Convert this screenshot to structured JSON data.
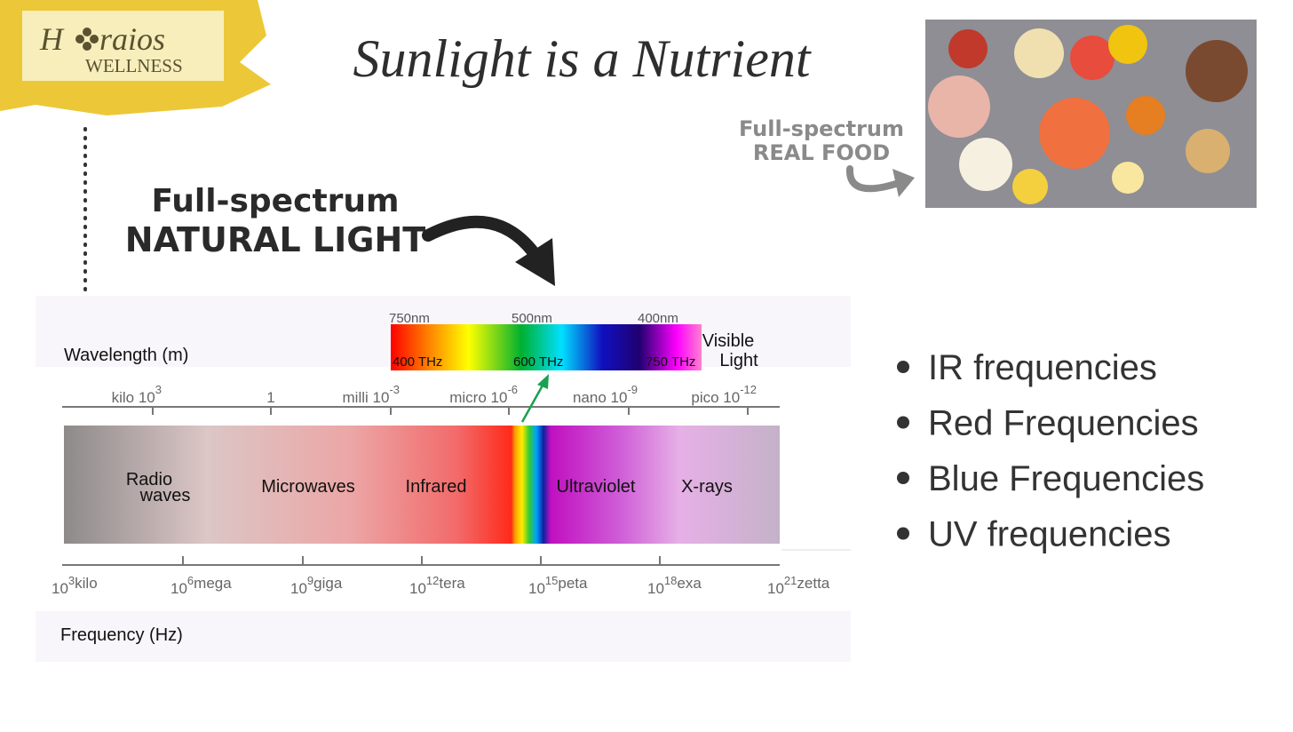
{
  "logo": {
    "first": "H",
    "rest": "raios",
    "sub": "WELLNESS"
  },
  "title": "Sunlight is a Nutrient",
  "food_label": [
    "Full-spectrum",
    "REAL FOOD"
  ],
  "light_label": [
    "Full-spectrum",
    "NATURAL LIGHT"
  ],
  "diagram": {
    "wavelength_label": "Wavelength (m)",
    "frequency_label": "Frequency (Hz)",
    "visible": {
      "nm": [
        "750nm",
        "500nm",
        "400nm"
      ],
      "thz": [
        "400 THz",
        "600 THz",
        "750 THz"
      ],
      "label": [
        "Visible",
        "Light"
      ]
    },
    "wavelength_ticks": [
      {
        "prefix": "kilo",
        "base": "10",
        "exp": "3"
      },
      {
        "base": "1"
      },
      {
        "prefix": "milli",
        "base": "10",
        "exp": "-3"
      },
      {
        "prefix": "micro",
        "base": "10",
        "exp": "-6"
      },
      {
        "prefix": "nano",
        "base": "10",
        "exp": "-9"
      },
      {
        "prefix": "pico",
        "base": "10",
        "exp": "-12"
      }
    ],
    "bands": [
      [
        "Radio",
        "waves"
      ],
      [
        "Microwaves"
      ],
      [
        "Infrared"
      ],
      [
        "Ultraviolet"
      ],
      [
        "X-rays"
      ]
    ],
    "frequency_ticks": [
      {
        "base": "10",
        "exp": "3",
        "suffix": "kilo"
      },
      {
        "base": "10",
        "exp": "6",
        "suffix": "mega"
      },
      {
        "base": "10",
        "exp": "9",
        "suffix": "giga"
      },
      {
        "base": "10",
        "exp": "12",
        "suffix": "tera"
      },
      {
        "base": "10",
        "exp": "15",
        "suffix": "peta"
      },
      {
        "base": "10",
        "exp": "18",
        "suffix": "exa"
      },
      {
        "base": "10",
        "exp": "21",
        "suffix": "zetta"
      }
    ]
  },
  "bullets": [
    "IR frequencies",
    "Red Frequencies",
    "Blue Frequencies",
    "UV frequencies"
  ]
}
